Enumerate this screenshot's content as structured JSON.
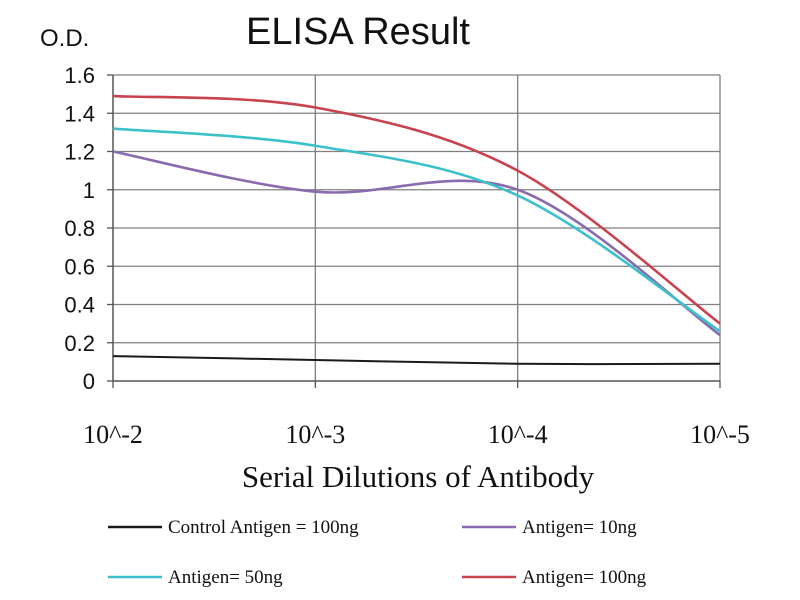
{
  "chart_data": {
    "type": "line",
    "title": "ELISA Result",
    "ylabel": "O.D.",
    "xlabel": "Serial Dilutions of Antibody",
    "x": [
      "10^-2",
      "10^-3",
      "10^-4",
      "10^-5"
    ],
    "ylim": [
      0,
      1.6
    ],
    "yticks": [
      "0",
      "0.2",
      "0.4",
      "0.6",
      "0.8",
      "1",
      "1.2",
      "1.4",
      "1.6"
    ],
    "grid": true,
    "legend_position": "bottom",
    "series": [
      {
        "name": "Control Antigen = 100ng",
        "color": "#1a1a1a",
        "values": [
          0.13,
          0.11,
          0.09,
          0.09
        ]
      },
      {
        "name": "Antigen= 10ng",
        "color": "#8a6bb0",
        "values": [
          1.2,
          0.99,
          1.0,
          0.24
        ]
      },
      {
        "name": "Antigen= 50ng",
        "color": "#3cc1cc",
        "values": [
          1.32,
          1.23,
          0.97,
          0.26
        ]
      },
      {
        "name": "Antigen= 100ng",
        "color": "#c8434e",
        "values": [
          1.49,
          1.43,
          1.1,
          0.3
        ]
      }
    ]
  }
}
